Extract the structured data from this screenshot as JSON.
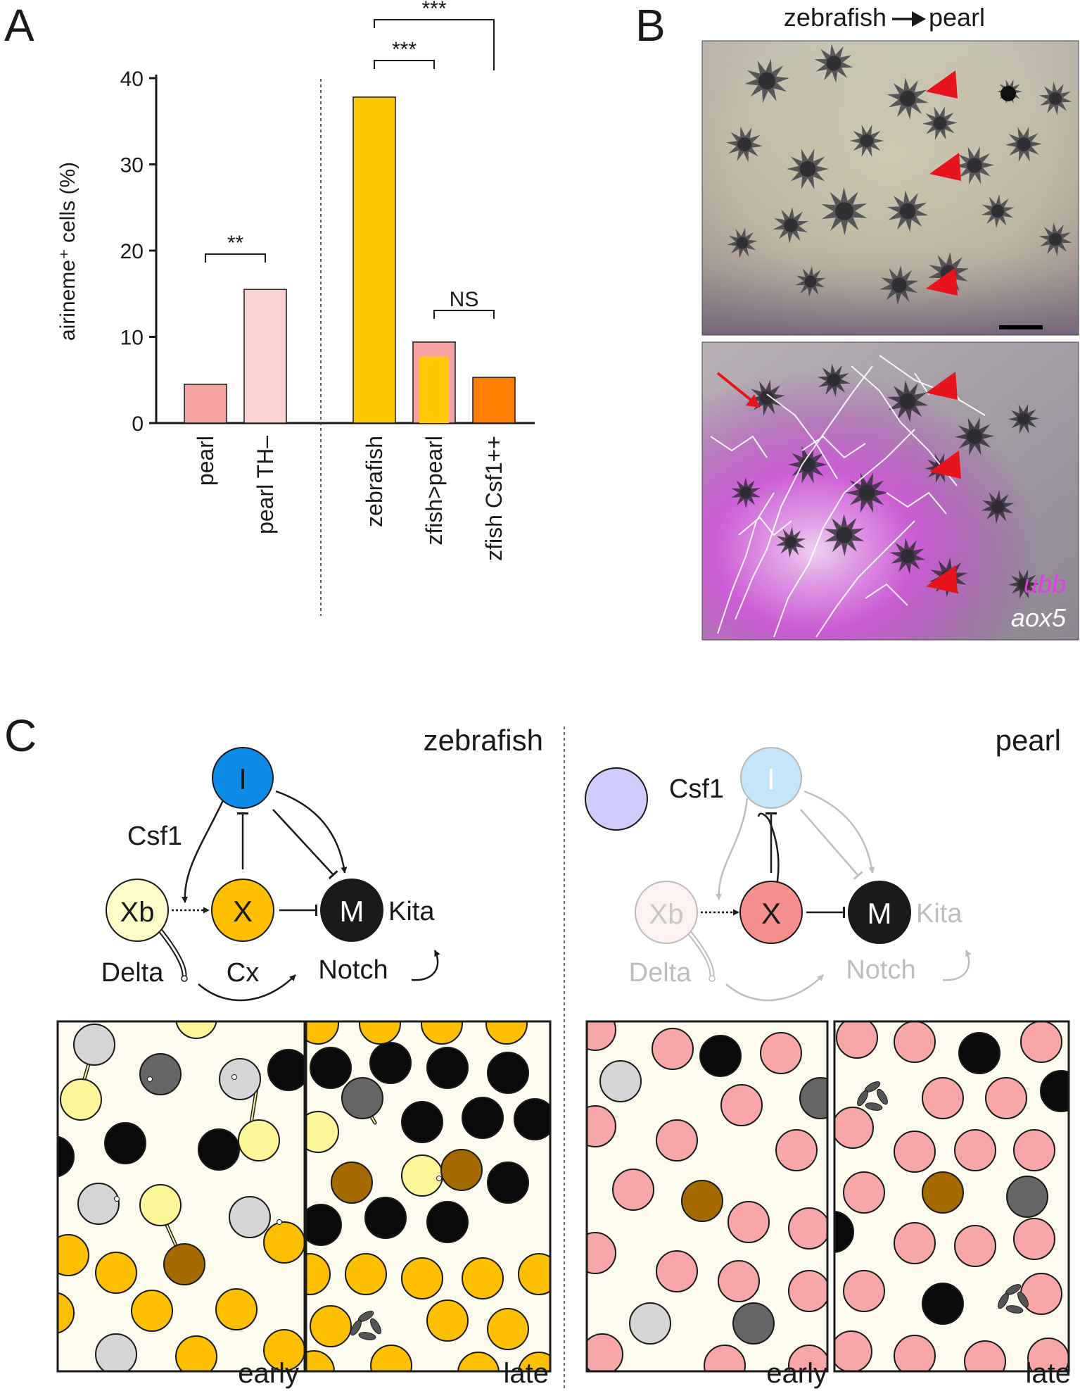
{
  "panels": {
    "a": "A",
    "b": "B",
    "c": "C"
  },
  "panel_a": {
    "chart_data": {
      "type": "bar",
      "ylabel": "airineme⁺ cells (%)",
      "ylim": [
        0,
        40
      ],
      "yticks": [
        0,
        10,
        20,
        30,
        40
      ],
      "categories": [
        "pearl",
        "pearl TH–",
        "zebrafish",
        "zfish>pearl",
        "zfish Csf1++"
      ],
      "values": [
        4.5,
        15.5,
        37.8,
        9.4,
        5.3
      ],
      "colors": [
        "#f4a3a0",
        "#fcd2d1",
        "#fdca00",
        "#fdca00",
        "#fe7f00"
      ],
      "significance": [
        {
          "between": [
            "pearl",
            "pearl TH–"
          ],
          "label": "**"
        },
        {
          "between": [
            "zfish>pearl",
            "zfish Csf1++"
          ],
          "label": "NS"
        },
        {
          "between": [
            "zebrafish",
            "zfish>pearl"
          ],
          "label": "***"
        },
        {
          "between": [
            "zebrafish",
            "zfish Csf1++"
          ],
          "label": "***"
        }
      ]
    }
  },
  "panel_b": {
    "header_left": "zebrafish",
    "header_right": "pearl",
    "legend_ubb": "ubb",
    "legend_aox5": "aox5",
    "arrow_color": "#e8141c",
    "ubb_color": "#e23ee6"
  },
  "panel_c": {
    "zebrafish": {
      "title": "zebrafish",
      "nodes": {
        "i": "I",
        "xb": "Xb",
        "x": "X",
        "m": "M"
      },
      "labels": {
        "csf1": "Csf1",
        "kita": "Kita",
        "delta": "Delta",
        "cx": "Cx",
        "notch": "Notch"
      },
      "early": "early",
      "late": "late"
    },
    "pearl": {
      "title": "pearl",
      "nodes": {
        "i": "I",
        "xb": "Xb",
        "x": "X",
        "m": "M"
      },
      "labels": {
        "csf1": "Csf1",
        "kita": "Kita",
        "delta": "Delta",
        "notch": "Notch"
      },
      "early": "early",
      "late": "late"
    }
  }
}
